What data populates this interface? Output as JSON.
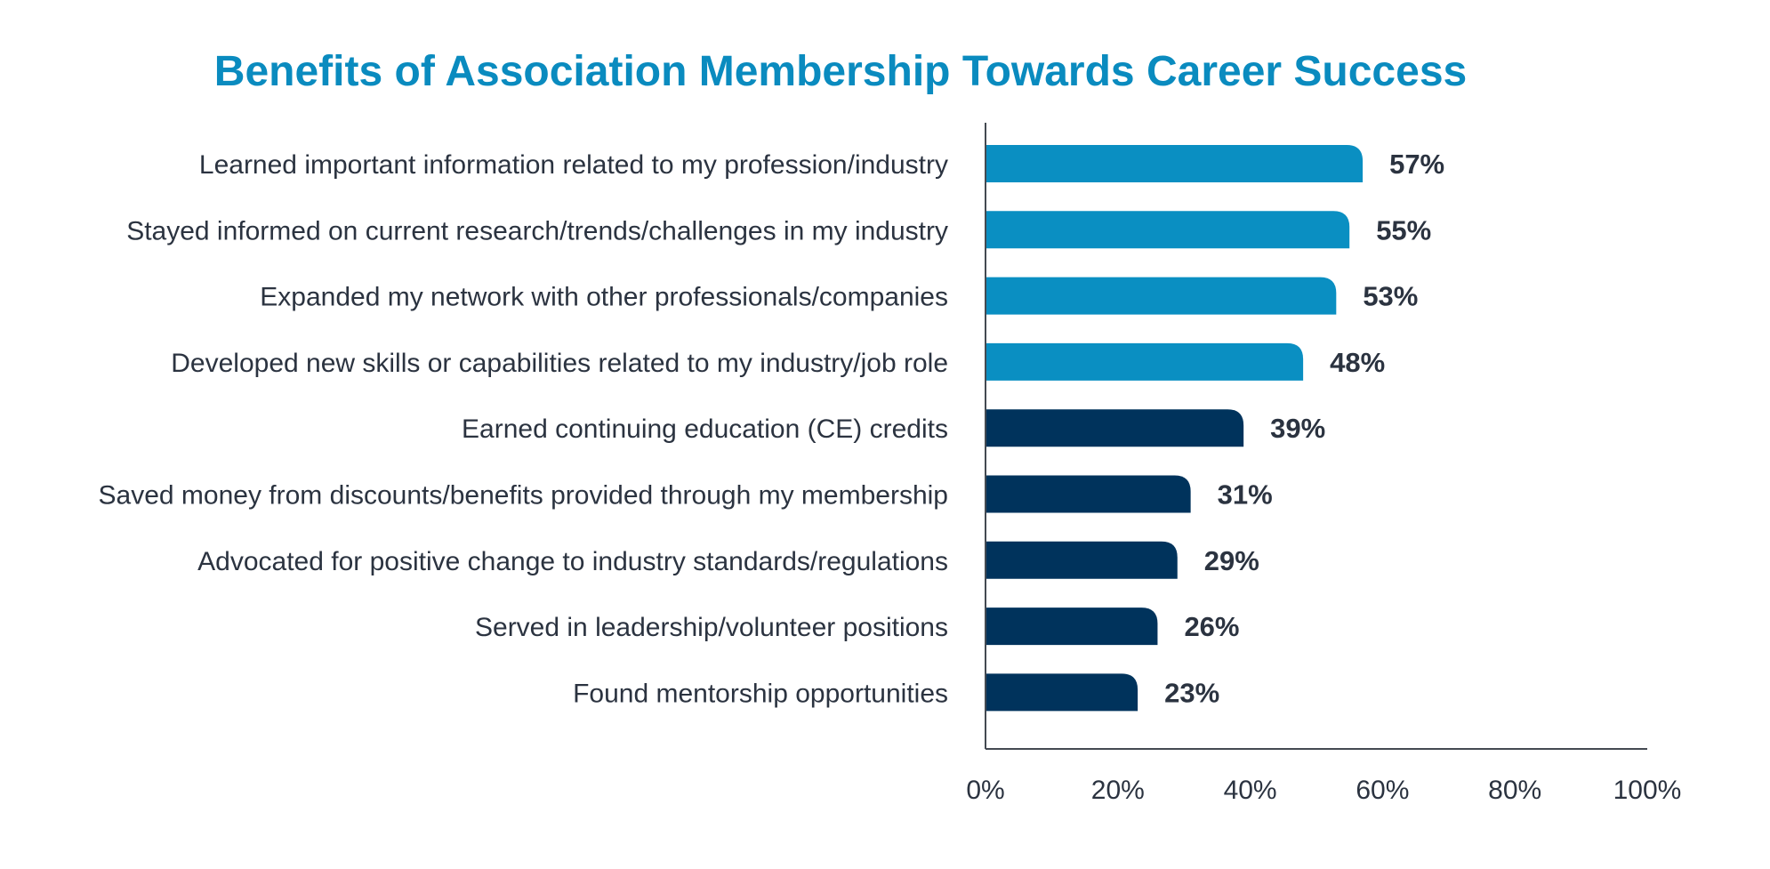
{
  "chart_data": {
    "type": "bar",
    "orientation": "horizontal",
    "title": "Benefits of Association Membership Towards Career Success",
    "categories": [
      "Learned important information related to my profession/industry",
      "Stayed informed on current research/trends/challenges in my industry",
      "Expanded my network with other professionals/companies",
      "Developed new skills or capabilities related to my industry/job role",
      "Earned continuing education (CE) credits",
      "Saved money from discounts/benefits provided through my membership",
      "Advocated for positive change to industry standards/regulations",
      "Served in leadership/volunteer positions",
      "Found mentorship opportunities"
    ],
    "values": [
      57,
      55,
      53,
      48,
      39,
      31,
      29,
      26,
      23
    ],
    "value_labels": [
      "57%",
      "55%",
      "53%",
      "48%",
      "39%",
      "31%",
      "29%",
      "26%",
      "23%"
    ],
    "bar_colors": [
      "#0a8fc2",
      "#0a8fc2",
      "#0a8fc2",
      "#0a8fc2",
      "#00335c",
      "#00335c",
      "#00335c",
      "#00335c",
      "#00335c"
    ],
    "xlim": [
      0,
      100
    ],
    "x_ticks": [
      0,
      20,
      40,
      60,
      80,
      100
    ],
    "x_tick_labels": [
      "0%",
      "20%",
      "40%",
      "60%",
      "80%",
      "100%"
    ],
    "xlabel": "",
    "ylabel": "",
    "grid": false,
    "legend": false,
    "colors": {
      "title": "#0a8bbf",
      "text": "#2b3340",
      "axis": "#444a52"
    }
  }
}
